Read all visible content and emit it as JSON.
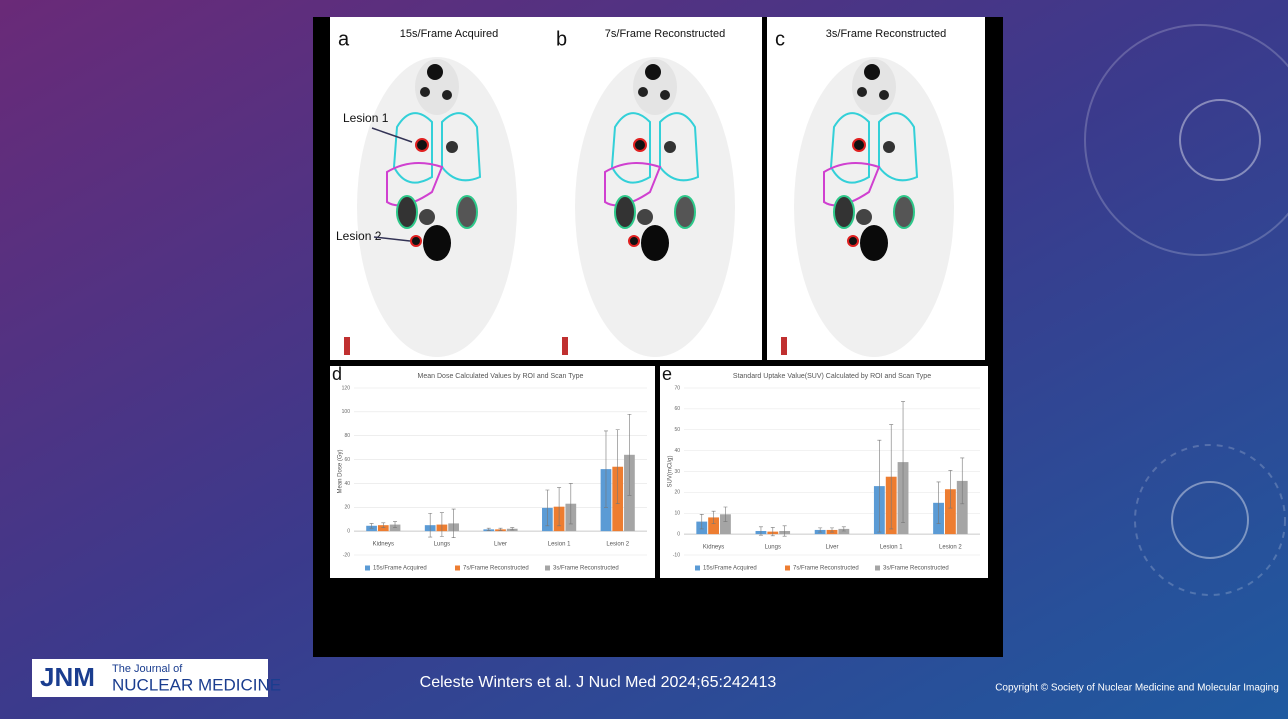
{
  "figure": {
    "panels": [
      {
        "letter": "a",
        "title": "15s/Frame Acquired"
      },
      {
        "letter": "b",
        "title": "7s/Frame Reconstructed"
      },
      {
        "letter": "c",
        "title": "3s/Frame Reconstructed"
      }
    ],
    "annotations": [
      "Lesion 1",
      "Lesion 2"
    ]
  },
  "chart_data": [
    {
      "type": "bar",
      "letter": "d",
      "title": "Mean Dose Calculated Values by ROI and Scan Type",
      "y_label": "Mean Dose (Gy)",
      "categories": [
        "Kidneys",
        "Lungs",
        "Liver",
        "Lesion 1",
        "Lesion 2"
      ],
      "series": [
        {
          "name": "15s/Frame Acquired",
          "color": "#5b9bd5",
          "values": [
            4.5,
            5,
            1.5,
            19.5,
            52
          ],
          "errors": [
            2,
            10,
            1,
            15,
            32
          ]
        },
        {
          "name": "7s/Frame Reconstructed",
          "color": "#ed7d31",
          "values": [
            5,
            5.5,
            1.5,
            20.5,
            54
          ],
          "errors": [
            2,
            10,
            1,
            16,
            31
          ]
        },
        {
          "name": "3s/Frame Reconstructed",
          "color": "#a5a5a5",
          "values": [
            5.5,
            6.5,
            2,
            23,
            64
          ],
          "errors": [
            2.5,
            12,
            1,
            17,
            34
          ]
        }
      ],
      "ylim": [
        -20,
        120
      ],
      "yticks": [
        -20,
        0,
        20,
        40,
        60,
        80,
        100,
        120
      ],
      "grid": true
    },
    {
      "type": "bar",
      "letter": "e",
      "title": "Standard Uptake Value(SUV) Calculated by ROI and Scan Type",
      "y_label": "SUV(mCi/g)",
      "categories": [
        "Kidneys",
        "Lungs",
        "Liver",
        "Lesion 1",
        "Lesion 2"
      ],
      "series": [
        {
          "name": "15s/Frame Acquired",
          "color": "#5b9bd5",
          "values": [
            6,
            1.5,
            2,
            23,
            15
          ],
          "errors": [
            3.5,
            2,
            1,
            22,
            10
          ]
        },
        {
          "name": "7s/Frame Reconstructed",
          "color": "#ed7d31",
          "values": [
            8,
            1.2,
            2,
            27.5,
            21.5
          ],
          "errors": [
            3,
            2,
            1,
            25,
            9
          ]
        },
        {
          "name": "3s/Frame Reconstructed",
          "color": "#a5a5a5",
          "values": [
            9.5,
            1.5,
            2.5,
            34.5,
            25.5
          ],
          "errors": [
            3.5,
            2.5,
            1,
            29,
            11
          ]
        }
      ],
      "ylim": [
        -10,
        70
      ],
      "yticks": [
        -10,
        0,
        10,
        20,
        30,
        40,
        50,
        60,
        70
      ],
      "grid": true
    }
  ],
  "footer": {
    "logo_abbr": "JNM",
    "logo_line1": "The Journal of",
    "logo_line2": "NUCLEAR MEDICINE",
    "citation": "Celeste Winters et al. J Nucl Med 2024;65:242413",
    "copyright": "Copyright © Society of Nuclear Medicine and Molecular Imaging"
  }
}
